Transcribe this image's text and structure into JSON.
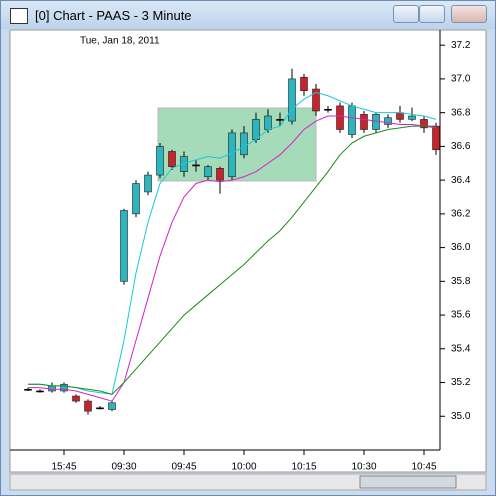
{
  "window_title": "[0]  Chart - PAAS - 3 Minute",
  "chart_data": {
    "type": "candlestick",
    "subtitle": "Tue, Jan 18, 2011",
    "categories": [
      null,
      null,
      null,
      "15:45",
      null,
      null,
      null,
      null,
      "09:30",
      null,
      null,
      null,
      null,
      "09:45",
      null,
      null,
      null,
      null,
      "10:00",
      null,
      null,
      null,
      null,
      "10:15",
      null,
      null,
      null,
      null,
      "10:30",
      null,
      null,
      null,
      null,
      "10:45",
      null
    ],
    "open": [
      35.16,
      35.15,
      35.15,
      35.15,
      35.12,
      35.09,
      35.05,
      35.04,
      35.8,
      36.2,
      36.33,
      36.43,
      36.57,
      36.45,
      36.49,
      36.42,
      36.47,
      36.42,
      36.55,
      36.64,
      36.7,
      36.76,
      36.75,
      37.01,
      36.94,
      36.82,
      36.84,
      36.67,
      36.79,
      36.7,
      36.73,
      36.8,
      36.76,
      36.76,
      36.72
    ],
    "high": [
      35.17,
      35.16,
      35.2,
      35.2,
      35.13,
      35.1,
      35.06,
      35.09,
      36.23,
      36.4,
      36.45,
      36.62,
      36.58,
      36.57,
      36.52,
      36.49,
      36.48,
      36.7,
      36.72,
      36.8,
      36.82,
      36.8,
      37.06,
      37.03,
      36.97,
      36.84,
      36.86,
      36.86,
      36.81,
      36.8,
      36.79,
      36.84,
      36.83,
      36.78,
      36.74
    ],
    "low": [
      35.15,
      35.14,
      35.14,
      35.14,
      35.08,
      35.01,
      35.04,
      35.03,
      35.78,
      36.18,
      36.31,
      36.41,
      36.46,
      36.42,
      36.45,
      36.4,
      36.32,
      36.4,
      36.53,
      36.62,
      36.68,
      36.72,
      36.73,
      36.9,
      36.78,
      36.8,
      36.68,
      36.65,
      36.68,
      36.68,
      36.71,
      36.74,
      36.75,
      36.68,
      36.55
    ],
    "close": [
      35.16,
      35.15,
      35.18,
      35.19,
      35.09,
      35.03,
      35.05,
      35.08,
      36.22,
      36.38,
      36.43,
      36.6,
      36.48,
      36.54,
      36.49,
      36.48,
      36.4,
      36.68,
      36.68,
      36.76,
      36.78,
      36.76,
      37.0,
      36.93,
      36.81,
      36.82,
      36.7,
      36.84,
      36.7,
      36.79,
      36.77,
      36.76,
      36.78,
      36.71,
      36.58
    ],
    "up_color": "#2ab5bf",
    "down_color": "#c8232c",
    "series": [
      {
        "color": "#18c8d8",
        "values": [
          35.19,
          35.19,
          35.18,
          35.18,
          35.17,
          35.15,
          35.14,
          35.13,
          35.45,
          35.85,
          36.15,
          36.38,
          36.47,
          36.5,
          36.52,
          36.54,
          36.53,
          36.56,
          36.6,
          36.64,
          36.7,
          36.72,
          36.82,
          36.88,
          36.92,
          36.9,
          36.87,
          36.84,
          36.82,
          36.8,
          36.8,
          36.8,
          36.79,
          36.78,
          36.76
        ]
      },
      {
        "color": "#d820c8",
        "values": [
          35.17,
          35.17,
          35.16,
          35.16,
          35.15,
          35.13,
          35.11,
          35.09,
          35.2,
          35.45,
          35.7,
          35.95,
          36.15,
          36.3,
          36.38,
          36.4,
          36.39,
          36.4,
          36.42,
          36.45,
          36.5,
          36.55,
          36.62,
          36.7,
          36.75,
          36.78,
          36.78,
          36.77,
          36.76,
          36.75,
          36.74,
          36.73,
          36.73,
          36.72,
          36.71
        ]
      },
      {
        "color": "#1a8a1a",
        "values": [
          35.19,
          35.19,
          35.18,
          35.18,
          35.17,
          35.16,
          35.15,
          35.13,
          35.2,
          35.28,
          35.36,
          35.44,
          35.52,
          35.6,
          35.66,
          35.72,
          35.78,
          35.84,
          35.9,
          35.97,
          36.04,
          36.1,
          36.18,
          36.27,
          36.36,
          36.45,
          36.55,
          36.62,
          36.66,
          36.68,
          36.7,
          36.71,
          36.72,
          36.72,
          36.72
        ]
      }
    ],
    "ylim": [
      34.8,
      37.29
    ],
    "yticks": [
      {
        "value": 35,
        "label": "35.0"
      },
      35.2,
      35.4,
      35.6,
      35.8,
      {
        "value": 36,
        "label": "36.0"
      },
      36.2,
      36.4,
      36.6,
      36.8,
      {
        "value": 37,
        "label": "37.0"
      },
      37.2
    ]
  }
}
